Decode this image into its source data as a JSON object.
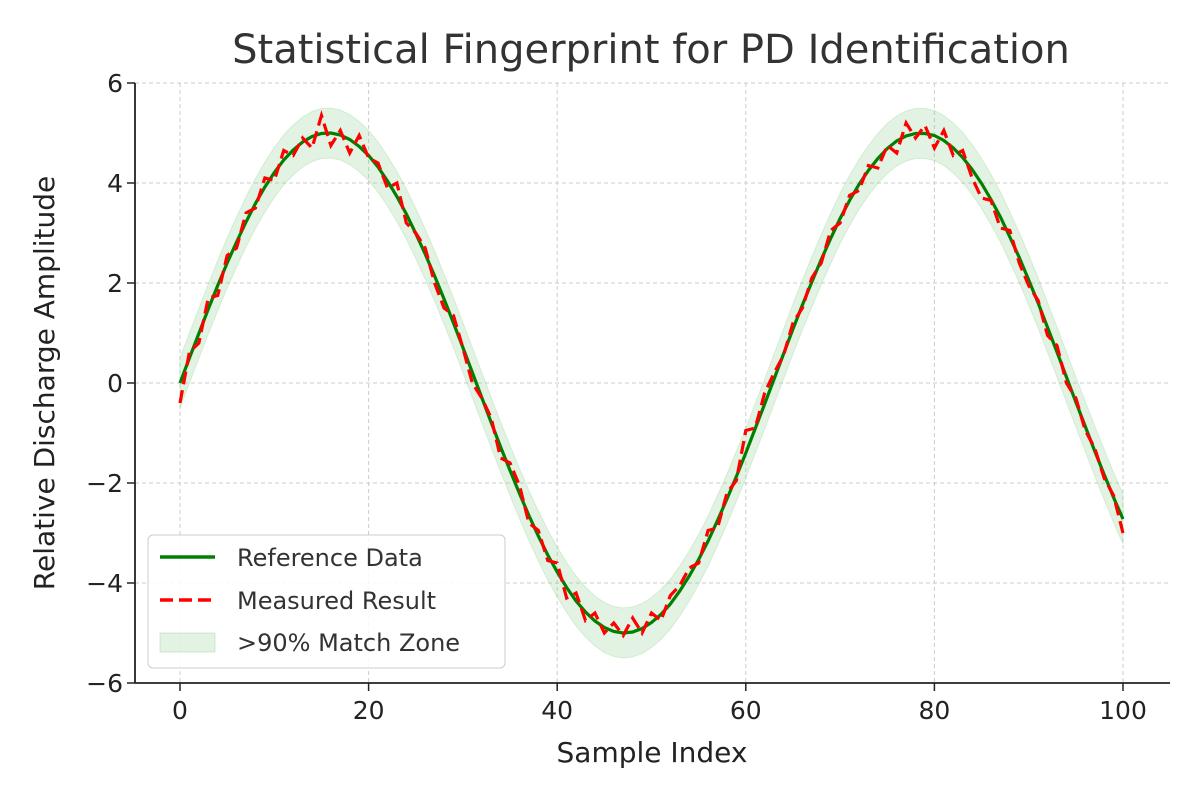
{
  "chart_data": {
    "type": "line",
    "title": "Statistical Fingerprint for PD Identification",
    "xlabel": "Sample Index",
    "ylabel": "Relative Discharge Amplitude",
    "xlim": [
      -5,
      105
    ],
    "ylim": [
      -6,
      6
    ],
    "xticks": [
      0,
      20,
      40,
      60,
      80,
      100
    ],
    "yticks": [
      -6,
      -4,
      -2,
      0,
      2,
      4,
      6
    ],
    "ytick_labels": [
      "−6",
      "−4",
      "−2",
      "0",
      "2",
      "4",
      "6"
    ],
    "grid": true,
    "legend_position": "lower-left",
    "band_halfwidth": 0.5,
    "series": [
      {
        "name": "Reference Data",
        "color": "#008000",
        "style": "solid",
        "values": [
          0,
          0.5,
          0.99,
          1.48,
          1.95,
          2.4,
          2.82,
          3.22,
          3.59,
          3.92,
          4.21,
          4.46,
          4.66,
          4.82,
          4.93,
          4.99,
          5.0,
          4.96,
          4.87,
          4.73,
          4.55,
          4.32,
          4.04,
          3.73,
          3.38,
          2.99,
          2.58,
          2.14,
          1.68,
          1.2,
          0.71,
          0.21,
          -0.29,
          -0.79,
          -1.28,
          -1.75,
          -2.21,
          -2.65,
          -3.06,
          -3.44,
          -3.78,
          -4.09,
          -4.36,
          -4.58,
          -4.76,
          -4.89,
          -4.97,
          -5.0,
          -4.98,
          -4.91,
          -4.79,
          -4.63,
          -4.42,
          -4.16,
          -3.86,
          -3.53,
          -3.16,
          -2.75,
          -2.32,
          -1.87,
          -1.4,
          -0.91,
          -0.42,
          0.08,
          0.58,
          1.08,
          1.56,
          2.02,
          2.47,
          2.89,
          3.29,
          3.65,
          3.97,
          4.25,
          4.49,
          4.69,
          4.84,
          4.94,
          4.99,
          4.99,
          4.95,
          4.85,
          4.7,
          4.51,
          4.27,
          3.99,
          3.67,
          3.32,
          2.92,
          2.51,
          2.06,
          1.6,
          1.11,
          0.62,
          0.12,
          -0.38,
          -0.87,
          -1.36,
          -1.83,
          -2.29,
          -2.72
        ]
      },
      {
        "name": "Measured Result",
        "color": "#ff0000",
        "style": "dashed",
        "values": [
          -0.4,
          0.62,
          0.8,
          1.7,
          1.75,
          2.55,
          2.7,
          3.4,
          3.5,
          4.1,
          4.05,
          4.65,
          4.55,
          4.9,
          4.7,
          5.35,
          4.75,
          5.05,
          4.6,
          4.95,
          4.5,
          4.4,
          3.9,
          4.0,
          3.2,
          3.0,
          2.7,
          2.0,
          1.5,
          1.35,
          0.7,
          0.0,
          -0.3,
          -0.7,
          -1.5,
          -1.6,
          -2.05,
          -2.8,
          -2.95,
          -3.55,
          -3.6,
          -4.3,
          -4.2,
          -4.75,
          -4.6,
          -5.0,
          -4.8,
          -5.05,
          -4.7,
          -5.0,
          -4.6,
          -4.75,
          -4.25,
          -4.05,
          -3.7,
          -3.6,
          -2.95,
          -2.9,
          -2.2,
          -1.95,
          -0.95,
          -0.9,
          -0.2,
          0.2,
          0.55,
          1.2,
          1.5,
          2.1,
          2.4,
          3.05,
          3.2,
          3.75,
          3.85,
          4.35,
          4.3,
          4.75,
          4.6,
          5.2,
          4.9,
          5.15,
          4.7,
          5.05,
          4.55,
          4.65,
          4.1,
          3.7,
          3.65,
          3.1,
          3.05,
          2.4,
          1.95,
          1.65,
          0.95,
          0.75,
          0.0,
          -0.3,
          -0.95,
          -1.3,
          -1.9,
          -2.25,
          -3.0
        ]
      },
      {
        "name": ">90% Match Zone",
        "color": "#90d090",
        "style": "band"
      }
    ]
  }
}
